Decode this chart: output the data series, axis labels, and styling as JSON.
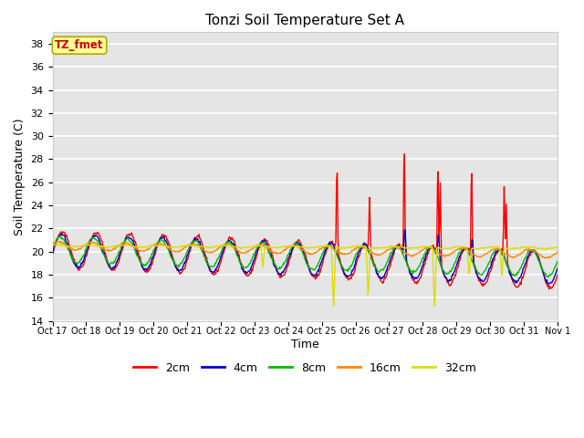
{
  "title": "Tonzi Soil Temperature Set A",
  "xlabel": "Time",
  "ylabel": "Soil Temperature (C)",
  "ylim": [
    14,
    39
  ],
  "yticks": [
    14,
    16,
    18,
    20,
    22,
    24,
    26,
    28,
    30,
    32,
    34,
    36,
    38
  ],
  "xtick_labels": [
    "Oct 17",
    "Oct 18",
    "Oct 19",
    "Oct 20",
    "Oct 21",
    "Oct 22",
    "Oct 23",
    "Oct 24",
    "Oct 25",
    "Oct 26",
    "Oct 27",
    "Oct 28",
    "Oct 29",
    "Oct 30",
    "Oct 31",
    "Nov 1"
  ],
  "background_color": "#e5e5e5",
  "grid_color": "#ffffff",
  "legend_label": "TZ_fmet",
  "legend_bg": "#ffff99",
  "legend_border": "#aaaa00",
  "series_colors": [
    "#ff0000",
    "#0000cc",
    "#00bb00",
    "#ff8800",
    "#dddd00"
  ],
  "series_labels": [
    "2cm",
    "4cm",
    "8cm",
    "16cm",
    "32cm"
  ],
  "series_linewidths": [
    1.0,
    1.0,
    1.0,
    1.0,
    1.0
  ]
}
